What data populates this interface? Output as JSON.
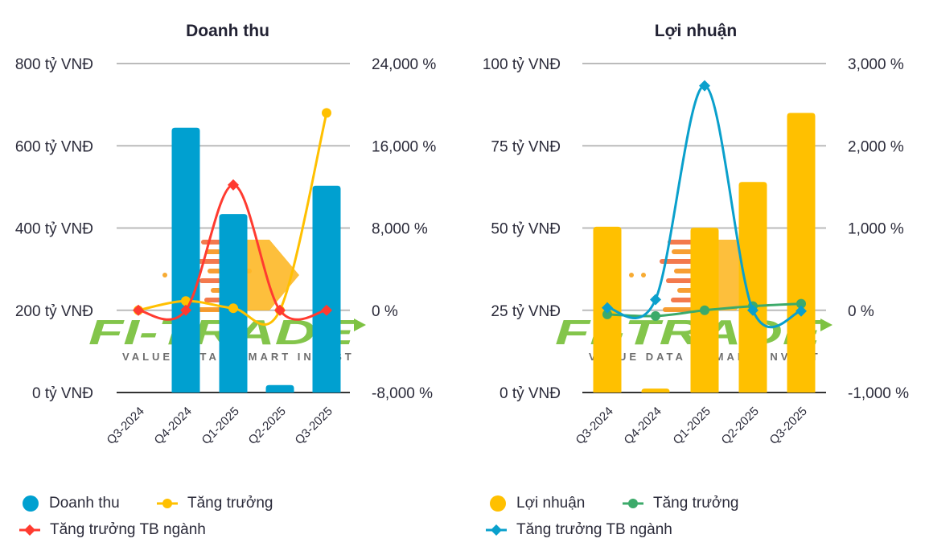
{
  "chart_data": [
    {
      "type": "bar",
      "title": "Doanh thu",
      "categories": [
        "Q3-2024",
        "Q4-2024",
        "Q1-2025",
        "Q2-2025",
        "Q3-2025"
      ],
      "y_left": {
        "unit": "tỷ VNĐ",
        "ylim": [
          0,
          800
        ],
        "ticks": [
          "800 tỷ VNĐ",
          "600 tỷ VNĐ",
          "400 tỷ VNĐ",
          "200 tỷ VNĐ",
          "0 tỷ VNĐ"
        ],
        "tick_values": [
          800,
          600,
          400,
          200,
          0
        ]
      },
      "y_right": {
        "unit": "%",
        "ylim": [
          -8000,
          24000
        ],
        "ticks": [
          "24,000 %",
          "16,000 %",
          "8,000 %",
          "0 %",
          "-8,000 %"
        ],
        "tick_values": [
          24000,
          16000,
          8000,
          0,
          -8000
        ]
      },
      "grid": true,
      "legend_position": "bottom-left",
      "series": [
        {
          "name": "Doanh thu",
          "kind": "bar",
          "axis": "left",
          "color": "#00A0D0",
          "values": [
            0,
            644,
            434,
            18,
            503
          ]
        },
        {
          "name": "Tăng trưởng",
          "kind": "line",
          "marker": "circle",
          "axis": "right",
          "color": "#FFC000",
          "values": [
            0,
            900,
            200,
            0,
            19200
          ]
        },
        {
          "name": "Tăng trưởng TB ngành",
          "kind": "line",
          "marker": "diamond",
          "axis": "right",
          "color": "#FF3B30",
          "values": [
            0,
            0,
            12200,
            0,
            0
          ]
        }
      ]
    },
    {
      "type": "bar",
      "title": "Lợi nhuận",
      "categories": [
        "Q3-2024",
        "Q4-2024",
        "Q1-2025",
        "Q2-2025",
        "Q3-2025"
      ],
      "y_left": {
        "unit": "tỷ VNĐ",
        "ylim": [
          0,
          100
        ],
        "ticks": [
          "100 tỷ VNĐ",
          "75 tỷ VNĐ",
          "50 tỷ VNĐ",
          "25 tỷ VNĐ",
          "0 tỷ VNĐ"
        ],
        "tick_values": [
          100,
          75,
          50,
          25,
          0
        ]
      },
      "y_right": {
        "unit": "%",
        "ylim": [
          -1000,
          3000
        ],
        "ticks": [
          "3,000 %",
          "2,000 %",
          "1,000 %",
          "0 %",
          "-1,000 %"
        ],
        "tick_values": [
          3000,
          2000,
          1000,
          0,
          -1000
        ]
      },
      "grid": true,
      "legend_position": "bottom-left",
      "series": [
        {
          "name": "Lợi nhuận",
          "kind": "bar",
          "axis": "left",
          "color": "#FFC000",
          "values": [
            50.4,
            1.2,
            50.1,
            64,
            85
          ]
        },
        {
          "name": "Tăng trưởng",
          "kind": "line",
          "marker": "circle",
          "axis": "right",
          "color": "#3CAA6A",
          "values": [
            -50,
            -70,
            0,
            50,
            80
          ]
        },
        {
          "name": "Tăng trưởng TB ngành",
          "kind": "line",
          "marker": "diamond",
          "axis": "right",
          "color": "#0AA0CC",
          "values": [
            30,
            130,
            2730,
            0,
            -10
          ]
        }
      ]
    }
  ],
  "watermark": {
    "brand": "FI-TRADE",
    "tagline": "VALUE DATA - SMART INVEST"
  },
  "legends": [
    {
      "items": [
        "Doanh thu",
        "Tăng trưởng",
        "Tăng trưởng TB ngành"
      ]
    },
    {
      "items": [
        "Lợi nhuận",
        "Tăng trưởng",
        "Tăng trưởng TB ngành"
      ]
    }
  ]
}
